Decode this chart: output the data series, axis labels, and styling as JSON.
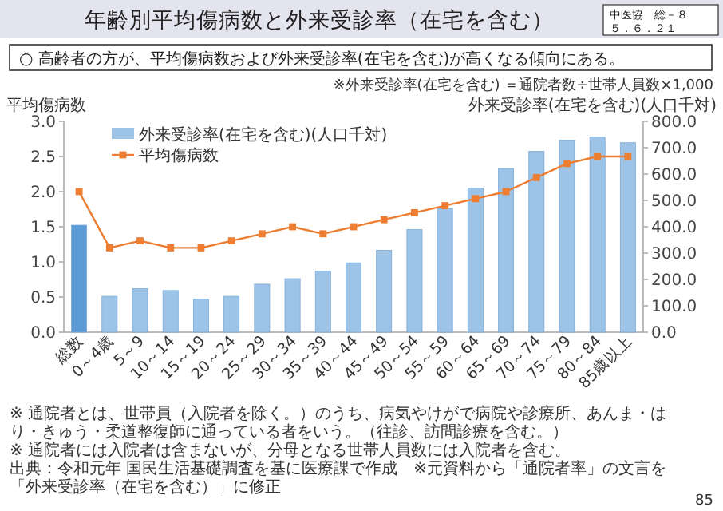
{
  "chart_data": {
    "type": "bar",
    "title": "年齢別平均傷病数と外来受診率（在宅を含む）",
    "subtitle": "○ 高齢者の方が、平均傷病数および外来受診率(在宅を含む)が高くなる傾向にある。",
    "ylabel": "平均傷病数",
    "y2label": "外来受診率(在宅を含む)(人口千対)",
    "annotations": [
      "中医協　総－８",
      "５．６．２１",
      "※外来受診率(在宅を含む) ＝通院者数÷世帯人員数×1,000",
      "※ 通院者とは、世帯員（入院者を除く。）のうち、病気やけがで病院や診療所、あんま・はり・きゅう・柔道整復師に通っている者をいう。（往診、訪問診療を含む。）",
      "※ 通院者には入院者は含まないが、分母となる世帯人員数には入院者を含む。",
      "出典：令和元年 国民生活基礎調査を基に医療課で作成　※元資料から「通院者率」の文言を「外来受診率（在宅を含む）」に修正",
      "85"
    ],
    "categories": [
      "総数",
      "0～4歳",
      "5～9",
      "10～14",
      "15～19",
      "20～24",
      "25～29",
      "30～34",
      "35～39",
      "40～44",
      "45～49",
      "50～54",
      "55～59",
      "60～64",
      "65～69",
      "70～74",
      "75～79",
      "80～84",
      "85歳以上"
    ],
    "series": [
      {
        "name": "外来受診率(在宅を含む)(人口千対)",
        "axis": "y2",
        "color": "#9dc3e6",
        "colors": [
          "#5b9bd5",
          "#9dc3e6",
          "#9dc3e6",
          "#9dc3e6",
          "#9dc3e6",
          "#9dc3e6",
          "#9dc3e6",
          "#9dc3e6",
          "#9dc3e6",
          "#9dc3e6",
          "#9dc3e6",
          "#9dc3e6",
          "#9dc3e6",
          "#9dc3e6",
          "#9dc3e6",
          "#9dc3e6",
          "#9dc3e6",
          "#9dc3e6",
          "#9dc3e6"
        ],
        "values": [
          406,
          136,
          165,
          158,
          126,
          136,
          182,
          203,
          232,
          263,
          311,
          389,
          470,
          547,
          621,
          686,
          729,
          741,
          719
        ]
      },
      {
        "name": "平均傷病数",
        "type": "line",
        "axis": "y",
        "color": "#ed7d31",
        "marker": "square",
        "values": [
          2.0,
          1.2,
          1.3,
          1.2,
          1.2,
          1.3,
          1.4,
          1.5,
          1.4,
          1.5,
          1.6,
          1.7,
          1.8,
          1.9,
          2.0,
          2.2,
          2.4,
          2.5,
          2.5
        ]
      }
    ],
    "ylim": [
      0,
      3
    ],
    "yticks": [
      {
        "value": 0,
        "label": "0.0"
      },
      {
        "value": 0.5,
        "label": "0.5"
      },
      {
        "value": 1,
        "label": "1.0"
      },
      {
        "value": 1.5,
        "label": "1.5"
      },
      {
        "value": 2,
        "label": "2.0"
      },
      {
        "value": 2.5,
        "label": "2.5"
      },
      {
        "value": 3,
        "label": "3.0"
      }
    ],
    "y2lim": [
      0,
      800
    ],
    "y2ticks": [
      {
        "value": 0,
        "label": "0.0"
      },
      {
        "value": 100,
        "label": "100.0"
      },
      {
        "value": 200,
        "label": "200.0"
      },
      {
        "value": 300,
        "label": "300.0"
      },
      {
        "value": 400,
        "label": "400.0"
      },
      {
        "value": 500,
        "label": "500.0"
      },
      {
        "value": 600,
        "label": "600.0"
      },
      {
        "value": 700,
        "label": "700.0"
      },
      {
        "value": 800,
        "label": "800.0"
      }
    ],
    "legend": "top left"
  }
}
